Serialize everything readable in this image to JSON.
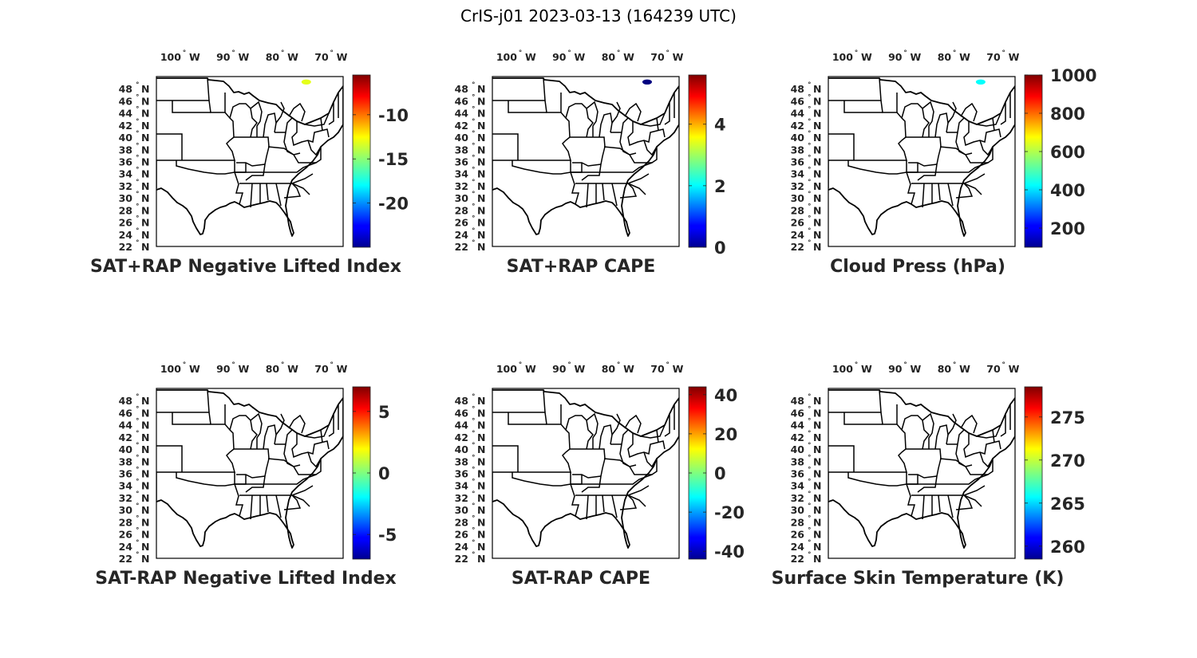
{
  "figure": {
    "title": "CrIS-j01 2023-03-13 (164239 UTC)"
  },
  "map": {
    "lon_labels": [
      "100",
      "90",
      "80",
      "70"
    ],
    "lon_values": [
      -100,
      -90,
      -80,
      -70
    ],
    "lon_suffix": "W",
    "lat_labels": [
      "48",
      "46",
      "44",
      "42",
      "40",
      "38",
      "36",
      "34",
      "32",
      "30",
      "28",
      "26",
      "24",
      "22"
    ],
    "lat_values": [
      48,
      46,
      44,
      42,
      40,
      38,
      36,
      34,
      32,
      30,
      28,
      26,
      24,
      22
    ],
    "lat_suffix": "N",
    "lon_range": [
      -106,
      -68
    ],
    "lat_range": [
      22,
      50
    ]
  },
  "colormap": "jet",
  "panels": [
    {
      "id": "sat-rap-pos-li",
      "title": "SAT+RAP Negative Lifted Index",
      "colorbar": {
        "ticks": [
          "-10",
          "-15",
          "-20"
        ],
        "tick_values": [
          -10,
          -15,
          -20
        ],
        "range": [
          -25,
          -5.5
        ]
      },
      "observations": [
        {
          "lon": -75.5,
          "lat": 49.5,
          "value": -13.3
        }
      ]
    },
    {
      "id": "sat-rap-pos-cape",
      "title": "SAT+RAP CAPE",
      "colorbar": {
        "ticks": [
          "4",
          "2",
          "0"
        ],
        "tick_values": [
          4,
          2,
          0
        ],
        "range": [
          0,
          5.6
        ]
      },
      "observations": [
        {
          "lon": -74.5,
          "lat": 49.5,
          "value": 0
        }
      ]
    },
    {
      "id": "cloud-press",
      "title": "Cloud Press (hPa)",
      "colorbar": {
        "ticks": [
          "1000",
          "800",
          "600",
          "400",
          "200"
        ],
        "tick_values": [
          1000,
          800,
          600,
          400,
          200
        ],
        "range": [
          100,
          1000
        ]
      },
      "observations": [
        {
          "lon": -75,
          "lat": 49.5,
          "value": 440
        }
      ]
    },
    {
      "id": "sat-rap-neg-li",
      "title": "SAT-RAP Negative Lifted Index",
      "colorbar": {
        "ticks": [
          "5",
          "0",
          "-5"
        ],
        "tick_values": [
          5,
          0,
          -5
        ],
        "range": [
          -7,
          7
        ]
      },
      "observations": []
    },
    {
      "id": "sat-rap-neg-cape",
      "title": "SAT-RAP CAPE",
      "colorbar": {
        "ticks": [
          "40",
          "20",
          "0",
          "-20",
          "-40"
        ],
        "tick_values": [
          40,
          20,
          0,
          -20,
          -40
        ],
        "range": [
          -44,
          44
        ]
      },
      "observations": []
    },
    {
      "id": "skin-temp",
      "title": "Surface Skin Temperature (K)",
      "colorbar": {
        "ticks": [
          "275",
          "270",
          "265",
          "260"
        ],
        "tick_values": [
          275,
          270,
          265,
          260
        ],
        "range": [
          258.5,
          278.5
        ]
      },
      "observations": []
    }
  ]
}
